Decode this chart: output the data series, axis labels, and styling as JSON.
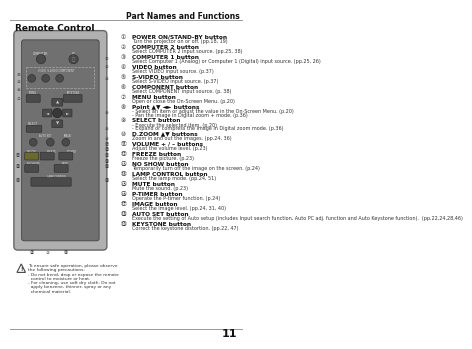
{
  "page_title": "Part Names and Functions",
  "section_title": "Remote Control",
  "page_number": "11",
  "bg_color": "#ffffff",
  "header_line_color": "#999999",
  "footer_line_color": "#999999",
  "text_color": "#333333",
  "bold_color": "#111111",
  "items": [
    {
      "num": "①",
      "bold": "POWER ON/STAND-BY button",
      "text": "Turn the projector on or off. (pp.18, 19)"
    },
    {
      "num": "②",
      "bold": "COMPUTER 2 button",
      "text": "Select COMPUTER 2 input source. (pp.25, 38)"
    },
    {
      "num": "③",
      "bold": "COMPUTER 1 button",
      "text": "Select Computer 1 (Analog) or Computer 1 (Digital) input source. (pp.25, 26)"
    },
    {
      "num": "④",
      "bold": "VIDEO button",
      "text": "Select VIDEO input source. (p.37)"
    },
    {
      "num": "⑤",
      "bold": "S-VIDEO button",
      "text": "Select S-VIDEO input source. (p.37)"
    },
    {
      "num": "⑥",
      "bold": "COMPONENT button",
      "text": "Select COMPONENT input source. (p. 38)"
    },
    {
      "num": "⑦",
      "bold": "MENU button",
      "text": "Open or close the On-Screen Menu. (p.20)"
    },
    {
      "num": "⑧",
      "bold": "Point ▲▼ ◄► buttons",
      "text": "- Select an item or adjust the value in the On-Screen Menu. (p.20)\n- Pan the image in Digital zoom + mode. (p.36)"
    },
    {
      "num": "⑨",
      "bold": "SELECT button",
      "text": "- Execute the selected item. (p.20)\n- Expand or compress the image in Digital zoom mode. (p.36)"
    },
    {
      "num": "⑩",
      "bold": "D.ZOOM ▲▼ buttons",
      "text": "Zoom in and out the images. (pp.24, 36)"
    },
    {
      "num": "⑪",
      "bold": "VOLUME + / – buttons",
      "text": "Adjust the volume level. (p.23)"
    },
    {
      "num": "⑫",
      "bold": "FREEZE button",
      "text": "Freeze the picture. (p.23)"
    },
    {
      "num": "⑬",
      "bold": "NO SHOW button",
      "text": "Temporarily turn off the image on the screen. (p.24)"
    },
    {
      "num": "⑭",
      "bold": "LAMP CONTROL button",
      "text": "Select the lamp mode. (pp.24, 51)"
    },
    {
      "num": "⑮",
      "bold": "MUTE button",
      "text": "Mute the sound. (p.23)"
    },
    {
      "num": "⑯",
      "bold": "P-TIMER button",
      "text": "Operate the P-timer function. (p.24)"
    },
    {
      "num": "⑰",
      "bold": "IMAGE button",
      "text": "Select the image level. (pp.24, 31, 40)"
    },
    {
      "num": "⑱",
      "bold": "AUTO SET button",
      "text": "Execute the setting of Auto setup (includes Input search function, Auto PC adj. function and Auto Keystone function).  (pp.22,24,28,46)"
    },
    {
      "num": "⑲",
      "bold": "KEYSTONE button",
      "text": "Correct the keystone distortion. (pp.22, 47)"
    }
  ],
  "warning_text_lines": [
    "To ensure safe operation, please observe",
    "the following precautions:",
    "- Do not bend, drop or expose the remote",
    "  control to moisture or heat.",
    "- For cleaning, use soft dry cloth. Do not",
    "  apply benzene, thinner, spray or any",
    "  chemical material."
  ]
}
